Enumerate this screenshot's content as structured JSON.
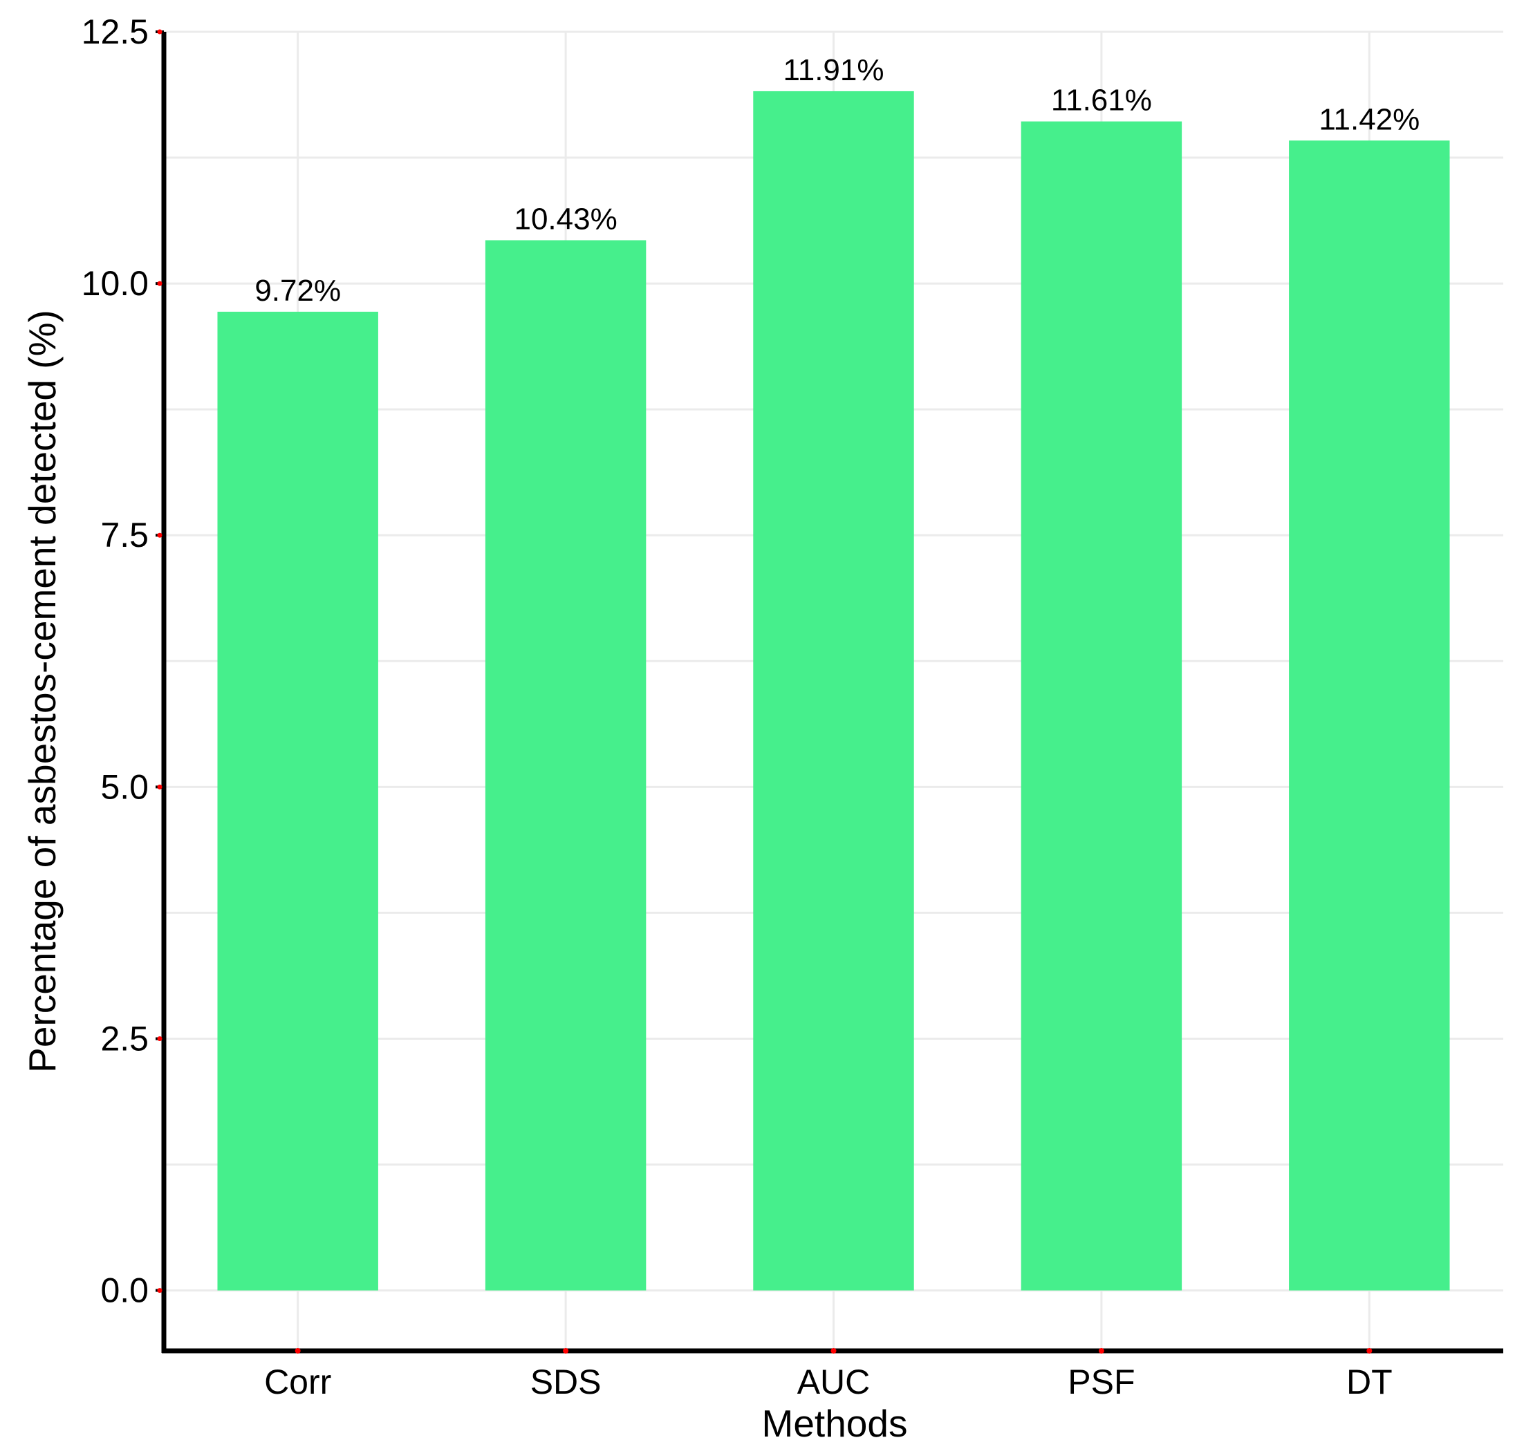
{
  "chart_data": {
    "type": "bar",
    "categories": [
      "Corr",
      "SDS",
      "AUC",
      "PSF",
      "DT"
    ],
    "values": [
      9.72,
      10.43,
      11.91,
      11.61,
      11.42
    ],
    "data_labels": [
      "9.72%",
      "10.43%",
      "11.91%",
      "11.61%",
      "11.42%"
    ],
    "xlabel": "Methods",
    "ylabel": "Percentage of asbestos-cement detected (%)",
    "ylim": [
      -0.6,
      12.5
    ],
    "yticks": [
      0.0,
      2.5,
      5.0,
      7.5,
      10.0,
      12.5
    ],
    "ytick_labels": [
      "0.0",
      "2.5",
      "5.0",
      "7.5",
      "10.0",
      "12.5"
    ],
    "grid": true,
    "legend": "none",
    "colors": {
      "bar": "#46ef8c",
      "grid": "#ebebeb",
      "axis": "#000000",
      "tick_marker": "#ff0000"
    }
  }
}
